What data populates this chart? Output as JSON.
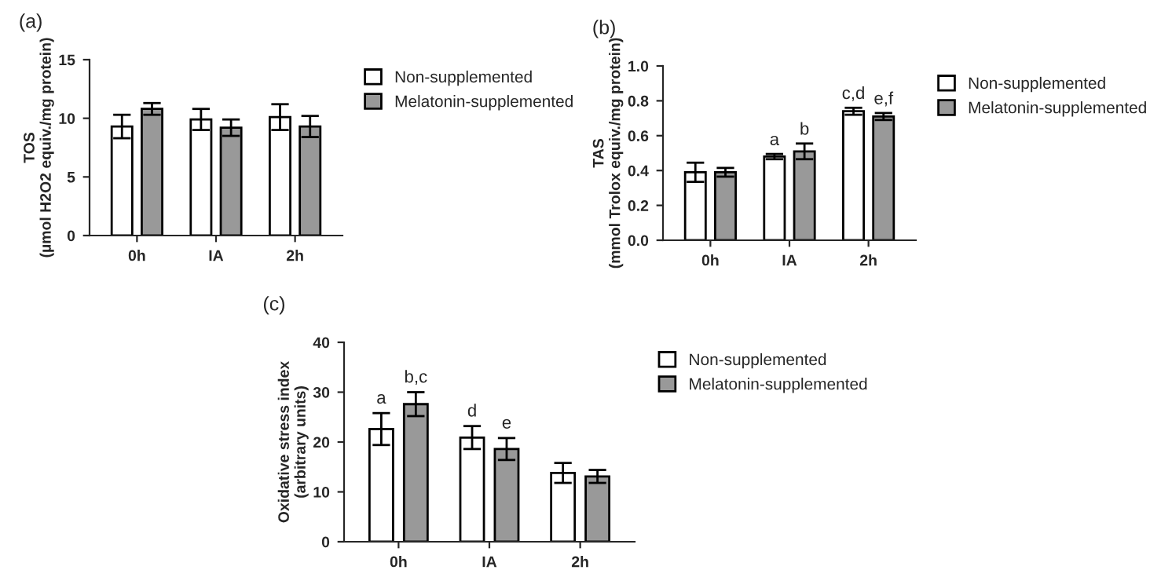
{
  "chart_data": [
    {
      "type": "bar",
      "title": "(a)",
      "ylabel": "TOS\n(µmol H2O2 equiv./mg protein)",
      "categories": [
        "0h",
        "IA",
        "2h"
      ],
      "ylim": [
        0,
        15
      ],
      "yticks": [
        0,
        5,
        10,
        15
      ],
      "legend": "right",
      "grid": false,
      "series": [
        {
          "name": "Non-supplemented",
          "color": "#ffffff",
          "values": [
            9.3,
            9.9,
            10.1
          ],
          "errors": [
            1.0,
            0.9,
            1.1
          ]
        },
        {
          "name": "Melatonin-supplemented",
          "color": "#999999",
          "values": [
            10.8,
            9.2,
            9.3
          ],
          "errors": [
            0.5,
            0.7,
            0.9
          ]
        }
      ]
    },
    {
      "type": "bar",
      "title": "(b)",
      "ylabel": "TAS\n(mmol Trolox equiv./mg protein)",
      "categories": [
        "0h",
        "IA",
        "2h"
      ],
      "ylim": [
        0,
        1.0
      ],
      "yticks": [
        {
          "value": 0,
          "label": "0.0"
        },
        0.2,
        0.4,
        0.6,
        0.8,
        {
          "value": 1,
          "label": "1.0"
        }
      ],
      "legend": "right",
      "grid": false,
      "series": [
        {
          "name": "Non-supplemented",
          "color": "#ffffff",
          "values": [
            0.39,
            0.48,
            0.74
          ],
          "errors": [
            0.055,
            0.015,
            0.02
          ],
          "value_labels": [
            null,
            "a",
            "c,d"
          ]
        },
        {
          "name": "Melatonin-supplemented",
          "color": "#999999",
          "values": [
            0.39,
            0.51,
            0.71
          ],
          "errors": [
            0.025,
            0.045,
            0.02
          ],
          "value_labels": [
            null,
            "b",
            "e,f"
          ]
        }
      ]
    },
    {
      "type": "bar",
      "title": "(c)",
      "ylabel": "Oxidative stress index\n(arbitrary units)",
      "categories": [
        "0h",
        "IA",
        "2h"
      ],
      "ylim": [
        0,
        40
      ],
      "yticks": [
        0,
        10,
        20,
        30,
        40
      ],
      "legend": "right",
      "grid": false,
      "series": [
        {
          "name": "Non-supplemented",
          "color": "#ffffff",
          "values": [
            22.6,
            20.9,
            13.8
          ],
          "errors": [
            3.2,
            2.3,
            2.0
          ],
          "value_labels": [
            "a",
            "d",
            null
          ]
        },
        {
          "name": "Melatonin-supplemented",
          "color": "#999999",
          "values": [
            27.6,
            18.6,
            13.1
          ],
          "errors": [
            2.4,
            2.2,
            1.3
          ],
          "value_labels": [
            "b,c",
            "e",
            null
          ]
        }
      ]
    }
  ]
}
